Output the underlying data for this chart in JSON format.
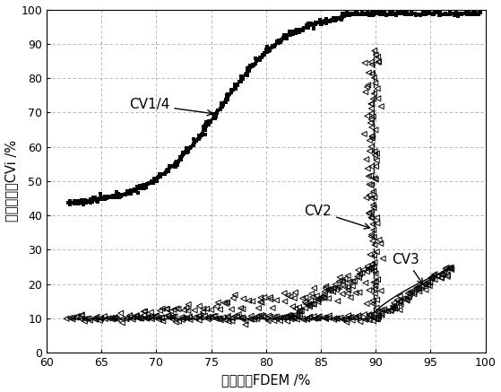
{
  "xlabel": "总阀位値FDEM /%",
  "ylabel": "各阀阀位値CVi /%",
  "xlim": [
    60,
    100
  ],
  "ylim": [
    0,
    100
  ],
  "xticks": [
    60,
    65,
    70,
    75,
    80,
    85,
    90,
    95,
    100
  ],
  "yticks": [
    0,
    10,
    20,
    30,
    40,
    50,
    60,
    70,
    80,
    90,
    100
  ],
  "background_color": "#ffffff",
  "grid_color": "#888888"
}
